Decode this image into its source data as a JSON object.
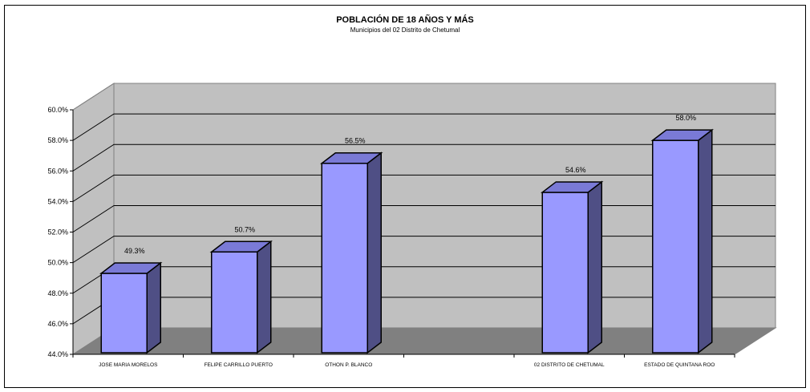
{
  "chart_data": {
    "type": "bar",
    "title": "POBLACIÓN DE 18 AÑOS Y MÁS",
    "subtitle": "Municipios del 02 Distrito de Chetumal",
    "categories": [
      "JOSE MARIA MORELOS",
      "FELIPE CARRILLO PUERTO",
      "OTHON P. BLANCO",
      "",
      "02 DISTRITO DE CHETUMAL",
      "ESTADO DE QUINTANA ROO"
    ],
    "values": [
      49.3,
      50.7,
      56.5,
      null,
      54.6,
      58.0
    ],
    "data_labels": [
      "49.3%",
      "50.7%",
      "56.5%",
      "",
      "54.6%",
      "58.0%"
    ],
    "ylim": [
      44,
      60
    ],
    "y_ticks": [
      "44.0%",
      "46.0%",
      "48.0%",
      "50.0%",
      "52.0%",
      "54.0%",
      "56.0%",
      "58.0%",
      "60.0%"
    ],
    "xlabel": "",
    "ylabel": "",
    "grid": true,
    "legend": "none",
    "colors": {
      "bar_front": "#9999ff",
      "bar_side": "#4f4f85",
      "bar_top": "#7a7ad6",
      "wall": "#c0c0c0",
      "floor": "#808080",
      "gridline": "#000000"
    }
  }
}
